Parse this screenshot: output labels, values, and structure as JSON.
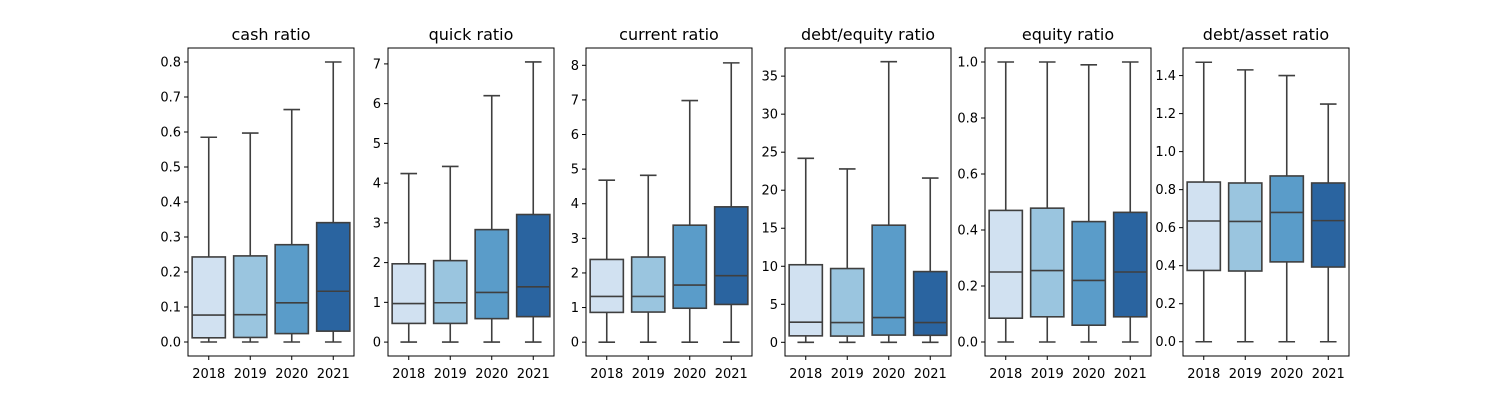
{
  "colors": [
    "#d1e1f1",
    "#9ac5df",
    "#5a9cc9",
    "#2a64a0"
  ],
  "chart_data": [
    {
      "type": "box",
      "title": "cash ratio",
      "categories": [
        "2018",
        "2019",
        "2020",
        "2021"
      ],
      "ylim": [
        -0.04,
        0.84
      ],
      "yticks": [
        0.0,
        0.1,
        0.2,
        0.3,
        0.4,
        0.5,
        0.6,
        0.7,
        0.8
      ],
      "yticklabels": [
        "0.0",
        "0.1",
        "0.2",
        "0.3",
        "0.4",
        "0.5",
        "0.6",
        "0.7",
        "0.8"
      ],
      "boxes": [
        {
          "min": 0.0,
          "q1": 0.012,
          "median": 0.077,
          "q3": 0.243,
          "max": 0.585
        },
        {
          "min": 0.0,
          "q1": 0.013,
          "median": 0.078,
          "q3": 0.246,
          "max": 0.597
        },
        {
          "min": 0.0,
          "q1": 0.024,
          "median": 0.112,
          "q3": 0.278,
          "max": 0.664
        },
        {
          "min": 0.0,
          "q1": 0.031,
          "median": 0.145,
          "q3": 0.341,
          "max": 0.8
        }
      ]
    },
    {
      "type": "box",
      "title": "quick ratio",
      "categories": [
        "2018",
        "2019",
        "2020",
        "2021"
      ],
      "ylim": [
        -0.35,
        7.4
      ],
      "yticks": [
        0,
        1,
        2,
        3,
        4,
        5,
        6,
        7
      ],
      "yticklabels": [
        "0",
        "1",
        "2",
        "3",
        "4",
        "5",
        "6",
        "7"
      ],
      "boxes": [
        {
          "min": 0.0,
          "q1": 0.47,
          "median": 0.97,
          "q3": 1.97,
          "max": 4.24
        },
        {
          "min": 0.0,
          "q1": 0.47,
          "median": 0.99,
          "q3": 2.05,
          "max": 4.42
        },
        {
          "min": 0.0,
          "q1": 0.59,
          "median": 1.25,
          "q3": 2.83,
          "max": 6.2
        },
        {
          "min": 0.0,
          "q1": 0.64,
          "median": 1.39,
          "q3": 3.21,
          "max": 7.05
        }
      ]
    },
    {
      "type": "box",
      "title": "current ratio",
      "categories": [
        "2018",
        "2019",
        "2020",
        "2021"
      ],
      "ylim": [
        -0.4,
        8.5
      ],
      "yticks": [
        0,
        1,
        2,
        3,
        4,
        5,
        6,
        7,
        8
      ],
      "yticklabels": [
        "0",
        "1",
        "2",
        "3",
        "4",
        "5",
        "6",
        "7",
        "8"
      ],
      "boxes": [
        {
          "min": 0.0,
          "q1": 0.86,
          "median": 1.32,
          "q3": 2.39,
          "max": 4.68
        },
        {
          "min": 0.0,
          "q1": 0.87,
          "median": 1.32,
          "q3": 2.46,
          "max": 4.82
        },
        {
          "min": 0.0,
          "q1": 0.98,
          "median": 1.65,
          "q3": 3.38,
          "max": 6.98
        },
        {
          "min": 0.0,
          "q1": 1.09,
          "median": 1.92,
          "q3": 3.91,
          "max": 8.07
        }
      ]
    },
    {
      "type": "box",
      "title": "debt/equity ratio",
      "categories": [
        "2018",
        "2019",
        "2020",
        "2021"
      ],
      "ylim": [
        -1.8,
        38.7
      ],
      "yticks": [
        0,
        5,
        10,
        15,
        20,
        25,
        30,
        35
      ],
      "yticklabels": [
        "0",
        "5",
        "10",
        "15",
        "20",
        "25",
        "30",
        "35"
      ],
      "boxes": [
        {
          "min": 0.0,
          "q1": 0.85,
          "median": 2.65,
          "q3": 10.2,
          "max": 24.2
        },
        {
          "min": 0.0,
          "q1": 0.82,
          "median": 2.6,
          "q3": 9.7,
          "max": 22.8
        },
        {
          "min": 0.0,
          "q1": 0.95,
          "median": 3.25,
          "q3": 15.4,
          "max": 36.9
        },
        {
          "min": 0.0,
          "q1": 0.92,
          "median": 2.6,
          "q3": 9.3,
          "max": 21.6
        }
      ]
    },
    {
      "type": "box",
      "title": "equity ratio",
      "categories": [
        "2018",
        "2019",
        "2020",
        "2021"
      ],
      "ylim": [
        -0.05,
        1.05
      ],
      "yticks": [
        0.0,
        0.2,
        0.4,
        0.6,
        0.8,
        1.0
      ],
      "yticklabels": [
        "0.0",
        "0.2",
        "0.4",
        "0.6",
        "0.8",
        "1.0"
      ],
      "boxes": [
        {
          "min": 0.0,
          "q1": 0.085,
          "median": 0.25,
          "q3": 0.47,
          "max": 1.0
        },
        {
          "min": 0.0,
          "q1": 0.09,
          "median": 0.255,
          "q3": 0.478,
          "max": 1.0
        },
        {
          "min": 0.0,
          "q1": 0.06,
          "median": 0.22,
          "q3": 0.43,
          "max": 0.99
        },
        {
          "min": 0.0,
          "q1": 0.09,
          "median": 0.25,
          "q3": 0.463,
          "max": 1.0
        }
      ]
    },
    {
      "type": "box",
      "title": "debt/asset ratio",
      "categories": [
        "2018",
        "2019",
        "2020",
        "2021"
      ],
      "ylim": [
        -0.075,
        1.545
      ],
      "yticks": [
        0.0,
        0.2,
        0.4,
        0.6,
        0.8,
        1.0,
        1.2,
        1.4
      ],
      "yticklabels": [
        "0.0",
        "0.2",
        "0.4",
        "0.6",
        "0.8",
        "1.0",
        "1.2",
        "1.4"
      ],
      "boxes": [
        {
          "min": 0.0,
          "q1": 0.375,
          "median": 0.635,
          "q3": 0.84,
          "max": 1.47
        },
        {
          "min": 0.0,
          "q1": 0.372,
          "median": 0.633,
          "q3": 0.835,
          "max": 1.43
        },
        {
          "min": 0.0,
          "q1": 0.42,
          "median": 0.68,
          "q3": 0.872,
          "max": 1.4
        },
        {
          "min": 0.0,
          "q1": 0.393,
          "median": 0.637,
          "q3": 0.835,
          "max": 1.25
        }
      ]
    }
  ]
}
